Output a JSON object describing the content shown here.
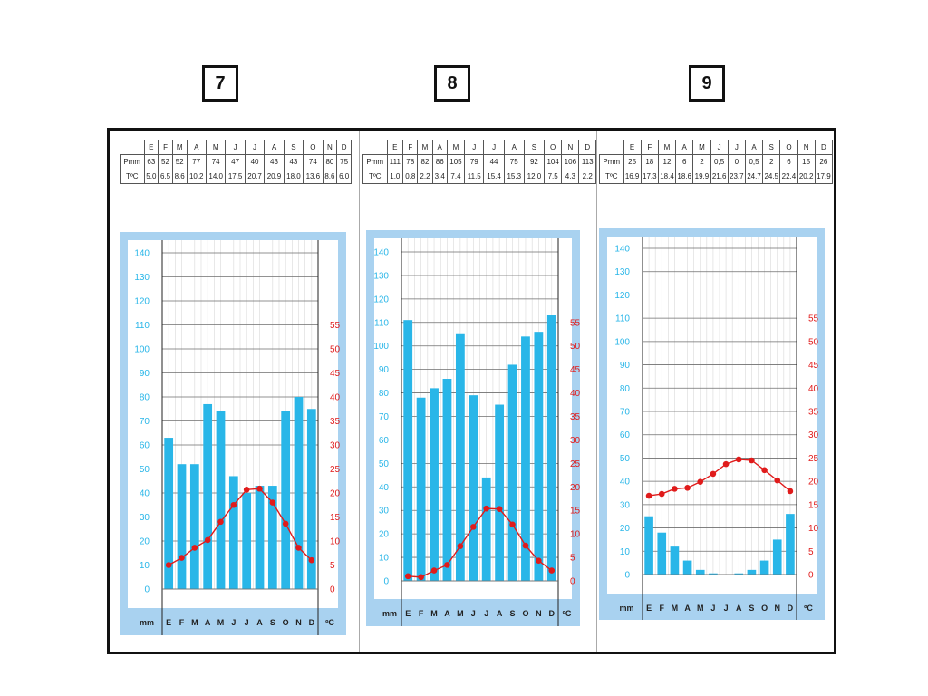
{
  "labels": {
    "numbers": [
      "7",
      "8",
      "9"
    ]
  },
  "table": {
    "months": [
      "E",
      "F",
      "M",
      "A",
      "M",
      "J",
      "J",
      "A",
      "S",
      "O",
      "N",
      "D"
    ],
    "row_p": "Pmm",
    "row_t": "TºC"
  },
  "axis": {
    "left_unit": "mm",
    "right_unit": "ºC",
    "left_ticks": [
      "0",
      "10",
      "20",
      "30",
      "40",
      "50",
      "60",
      "70",
      "80",
      "90",
      "100",
      "110",
      "120",
      "130",
      "140"
    ],
    "right_ticks": [
      "0",
      "5",
      "10",
      "15",
      "20",
      "25",
      "30",
      "35",
      "40",
      "45",
      "50",
      "55"
    ]
  },
  "colors": {
    "bar": "#29b6e8",
    "line": "#e01b1b",
    "frame_bg": "#a9d2f0",
    "axis_red": "#e01b1b",
    "axis_blue": "#29b6e8"
  },
  "chart_data": [
    {
      "type": "bar",
      "categories": [
        "E",
        "F",
        "M",
        "A",
        "M",
        "J",
        "J",
        "A",
        "S",
        "O",
        "N",
        "D"
      ],
      "series": [
        {
          "name": "Pmm",
          "type": "bar",
          "values": [
            63,
            52,
            52,
            77,
            74,
            47,
            40,
            43,
            43,
            74,
            80,
            75
          ],
          "labels": [
            "63",
            "52",
            "52",
            "77",
            "74",
            "47",
            "40",
            "43",
            "43",
            "74",
            "80",
            "75"
          ]
        },
        {
          "name": "TºC",
          "type": "line",
          "values": [
            5.0,
            6.5,
            8.6,
            10.2,
            14.0,
            17.5,
            20.7,
            20.9,
            18.0,
            13.6,
            8.6,
            6.0
          ],
          "labels": [
            "5,0",
            "6,5",
            "8,6",
            "10,2",
            "14,0",
            "17,5",
            "20,7",
            "20,9",
            "18,0",
            "13,6",
            "8,6",
            "6,0"
          ]
        }
      ],
      "ylim": [
        0,
        140
      ],
      "y2lim": [
        0,
        70
      ]
    },
    {
      "type": "bar",
      "categories": [
        "E",
        "F",
        "M",
        "A",
        "M",
        "J",
        "J",
        "A",
        "S",
        "O",
        "N",
        "D"
      ],
      "series": [
        {
          "name": "Pmm",
          "type": "bar",
          "values": [
            111,
            78,
            82,
            86,
            105,
            79,
            44,
            75,
            92,
            104,
            106,
            113
          ],
          "labels": [
            "111",
            "78",
            "82",
            "86",
            "105",
            "79",
            "44",
            "75",
            "92",
            "104",
            "106",
            "113"
          ]
        },
        {
          "name": "TºC",
          "type": "line",
          "values": [
            1.0,
            0.8,
            2.2,
            3.4,
            7.4,
            11.5,
            15.4,
            15.3,
            12.0,
            7.5,
            4.3,
            2.2
          ],
          "labels": [
            "1,0",
            "0,8",
            "2,2",
            "3,4",
            "7,4",
            "11,5",
            "15,4",
            "15,3",
            "12,0",
            "7,5",
            "4,3",
            "2,2"
          ]
        }
      ],
      "ylim": [
        0,
        140
      ],
      "y2lim": [
        0,
        70
      ]
    },
    {
      "type": "bar",
      "categories": [
        "E",
        "F",
        "M",
        "A",
        "M",
        "J",
        "J",
        "A",
        "S",
        "O",
        "N",
        "D"
      ],
      "series": [
        {
          "name": "Pmm",
          "type": "bar",
          "values": [
            25,
            18,
            12,
            6,
            2,
            0.5,
            0,
            0.5,
            2,
            6,
            15,
            26
          ],
          "labels": [
            "25",
            "18",
            "12",
            "6",
            "2",
            "0,5",
            "0",
            "0,5",
            "2",
            "6",
            "15",
            "26"
          ]
        },
        {
          "name": "TºC",
          "type": "line",
          "values": [
            16.9,
            17.3,
            18.4,
            18.6,
            19.9,
            21.6,
            23.7,
            24.7,
            24.5,
            22.4,
            20.2,
            17.9
          ],
          "labels": [
            "16,9",
            "17,3",
            "18,4",
            "18,6",
            "19,9",
            "21,6",
            "23,7",
            "24,7",
            "24,5",
            "22,4",
            "20,2",
            "17,9"
          ]
        }
      ],
      "ylim": [
        0,
        140
      ],
      "y2lim": [
        0,
        70
      ]
    }
  ]
}
